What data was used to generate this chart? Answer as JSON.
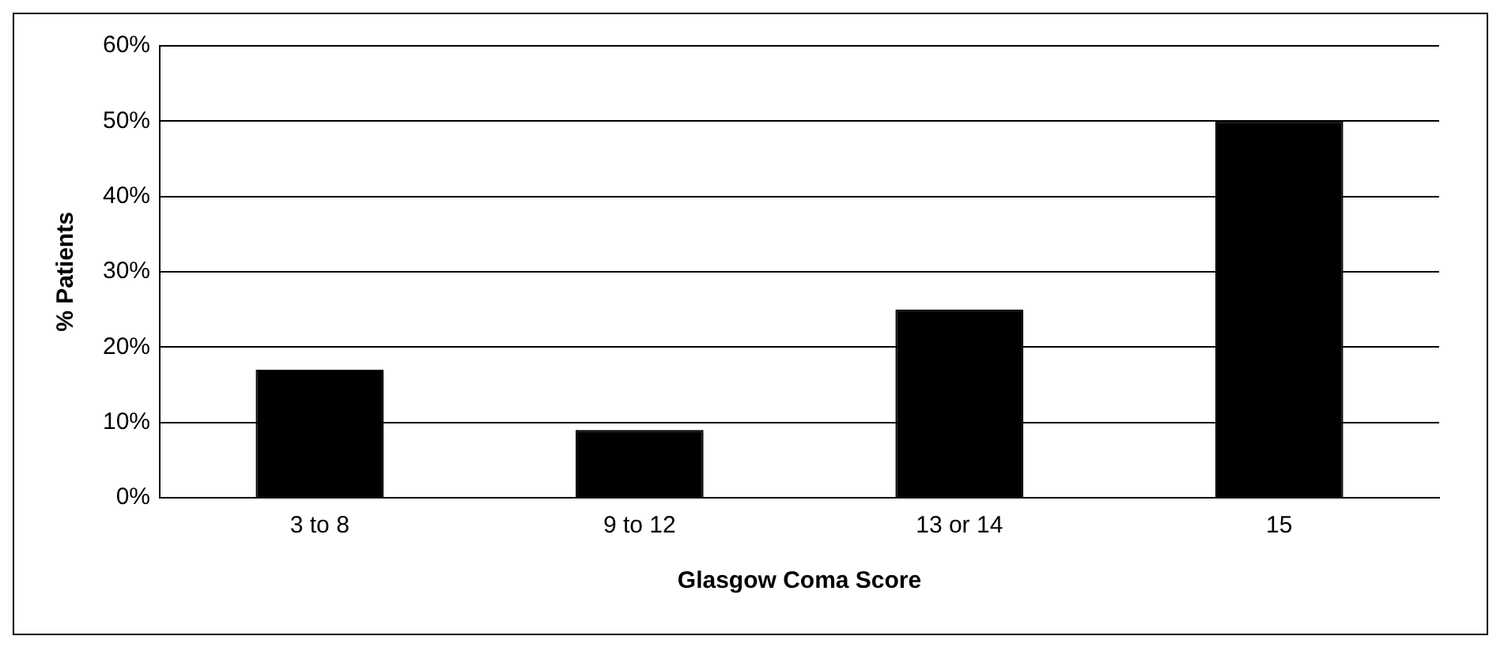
{
  "chart_data": {
    "type": "bar",
    "xlabel": "Glasgow Coma Score",
    "ylabel": "% Patients",
    "categories": [
      "3 to 8",
      "9 to 12",
      "13 or 14",
      "15"
    ],
    "values": [
      17,
      9,
      25,
      50
    ],
    "color": "#000000",
    "ylim": [
      0,
      60
    ],
    "yticks": [
      {
        "value": 0,
        "label": "0%"
      },
      {
        "value": 10,
        "label": "10%"
      },
      {
        "value": 20,
        "label": "20%"
      },
      {
        "value": 30,
        "label": "30%"
      },
      {
        "value": 40,
        "label": "40%"
      },
      {
        "value": 50,
        "label": "50%"
      },
      {
        "value": 60,
        "label": "60%"
      }
    ],
    "grid": "y",
    "legend": false
  }
}
